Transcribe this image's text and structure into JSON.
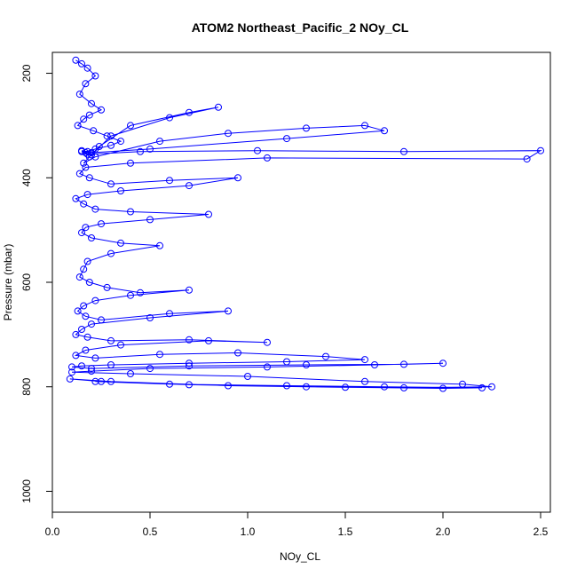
{
  "chart_data": {
    "type": "scatter",
    "title": "ATOM2 Northeast_Pacific_2 NOy_CL",
    "xlabel": "NOy_CL",
    "ylabel": "Pressure (mbar)",
    "xlim": [
      0.0,
      2.55
    ],
    "ylim": [
      1040,
      160
    ],
    "y_reversed": true,
    "x_ticks": [
      "0.0",
      "0.5",
      "1.0",
      "1.5",
      "2.0",
      "2.5"
    ],
    "y_ticks": [
      "200",
      "400",
      "600",
      "800",
      "1000"
    ],
    "marker": "open-circle",
    "connected": true,
    "grid": false,
    "legend": "none",
    "color": "#0000ff",
    "series": [
      {
        "x": [
          0.12,
          0.15,
          0.18,
          0.22,
          0.17,
          0.14,
          0.2,
          0.25,
          0.19,
          0.16,
          0.13,
          0.21,
          0.28,
          0.35,
          0.3,
          0.22,
          0.18,
          0.15,
          0.17,
          0.2,
          0.24,
          0.4,
          0.7,
          0.85,
          0.6,
          0.3,
          0.19,
          0.16,
          0.22,
          0.55,
          0.9,
          1.3,
          1.6,
          1.7,
          1.2,
          0.5,
          0.2,
          0.15,
          0.18,
          0.45,
          1.05,
          1.8,
          2.5,
          2.43,
          1.1,
          0.4,
          0.17,
          0.14,
          0.19,
          0.3,
          0.6,
          0.95,
          0.7,
          0.35,
          0.18,
          0.12,
          0.16,
          0.22,
          0.4,
          0.8,
          0.5,
          0.25,
          0.17,
          0.15,
          0.2,
          0.35,
          0.55,
          0.3,
          0.18,
          0.16,
          0.14,
          0.19,
          0.28,
          0.45,
          0.7,
          0.4,
          0.22,
          0.16,
          0.13,
          0.17,
          0.25,
          0.6,
          0.9,
          0.5,
          0.2,
          0.15,
          0.12,
          0.18,
          0.3,
          0.7,
          1.1,
          0.8,
          0.35,
          0.17,
          0.12,
          0.22,
          0.55,
          0.95,
          1.4,
          1.6,
          1.2,
          0.7,
          0.3,
          0.15,
          0.1,
          0.2,
          0.7,
          1.3,
          1.8,
          2.0,
          1.65,
          1.1,
          0.5,
          0.2,
          0.1,
          0.4,
          1.0,
          1.6,
          2.1,
          2.25,
          1.8,
          1.3,
          0.7,
          0.25,
          0.09,
          0.3,
          0.9,
          1.5,
          2.0,
          2.2,
          1.7,
          1.2,
          0.6,
          0.22
        ],
        "y": [
          175,
          182,
          190,
          205,
          220,
          240,
          258,
          270,
          280,
          288,
          300,
          310,
          320,
          330,
          338,
          345,
          350,
          348,
          352,
          356,
          340,
          300,
          275,
          265,
          285,
          320,
          360,
          372,
          360,
          330,
          315,
          305,
          300,
          310,
          325,
          345,
          352,
          350,
          355,
          350,
          348,
          350,
          348,
          364,
          362,
          372,
          380,
          392,
          400,
          412,
          405,
          400,
          415,
          425,
          432,
          440,
          450,
          460,
          465,
          470,
          480,
          488,
          495,
          505,
          515,
          525,
          530,
          545,
          560,
          575,
          590,
          600,
          610,
          620,
          615,
          625,
          635,
          645,
          655,
          665,
          672,
          660,
          655,
          668,
          680,
          690,
          700,
          705,
          712,
          710,
          715,
          712,
          720,
          730,
          740,
          745,
          738,
          735,
          742,
          748,
          752,
          755,
          758,
          760,
          762,
          765,
          760,
          758,
          757,
          755,
          758,
          762,
          765,
          770,
          772,
          775,
          780,
          790,
          795,
          800,
          802,
          800,
          796,
          790,
          785,
          790,
          798,
          801,
          803,
          802,
          800,
          798,
          795,
          790
        ]
      }
    ]
  }
}
